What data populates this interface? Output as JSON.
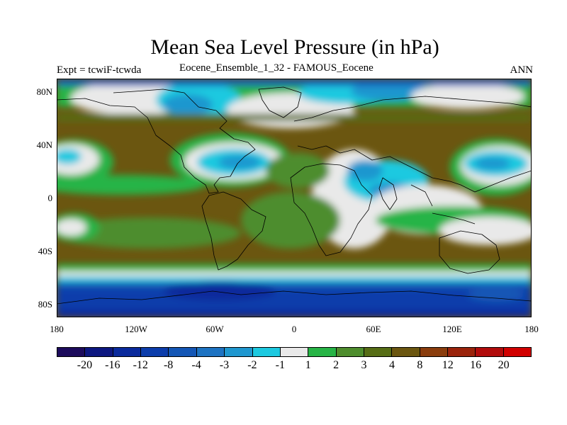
{
  "title": "Mean Sea Level Pressure (in hPa)",
  "subtitle_left": "Expt = tcwiF-tcwda",
  "subtitle_center": "Eocene_Ensemble_1_32 - FAMOUS_Eocene",
  "subtitle_right": "ANN",
  "lat_ticks": [
    "80N",
    "40N",
    "0",
    "40S",
    "80S"
  ],
  "lon_ticks": [
    "180",
    "120W",
    "60W",
    "0",
    "60E",
    "120E",
    "180"
  ],
  "colorbar": {
    "colors": [
      "#1d0b5c",
      "#0d1780",
      "#0a2a9c",
      "#0c3dab",
      "#1456b5",
      "#1e73c2",
      "#1f97cf",
      "#1dc9e0",
      "#e9e9e9",
      "#27b446",
      "#4e8d2d",
      "#566d15",
      "#6b5610",
      "#8a3d0d",
      "#9a230b",
      "#b10c0c",
      "#d10000"
    ],
    "labels": [
      "-20",
      "-16",
      "-12",
      "-8",
      "-4",
      "-3",
      "-2",
      "-1",
      "1",
      "2",
      "3",
      "4",
      "8",
      "12",
      "16",
      "20"
    ]
  }
}
